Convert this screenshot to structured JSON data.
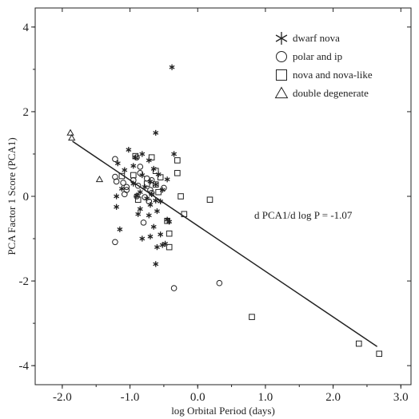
{
  "chart_data": {
    "type": "scatter",
    "title": "",
    "xlabel": "log Orbital Period (days)",
    "ylabel": "PCA Factor 1 Score (PCA1)",
    "xlim": [
      -2.4,
      3.15
    ],
    "ylim": [
      -4.45,
      4.45
    ],
    "x_ticks": [
      -2.0,
      -1.0,
      0.0,
      1.0,
      2.0,
      3.0
    ],
    "x_tick_labels": [
      "-2.0",
      "-1.0",
      "0.0",
      "1.0",
      "2.0",
      "3.0"
    ],
    "y_ticks": [
      4,
      2,
      0,
      -2,
      -4
    ],
    "y_tick_labels": [
      "4",
      "2",
      "0",
      "-2",
      "-4"
    ],
    "grid": false,
    "legend_position": "top-right",
    "annotation": "d PCA1/d log P = -1.07",
    "fit_line": {
      "x": [
        -1.85,
        2.65
      ],
      "y": [
        1.3,
        -3.55
      ]
    },
    "series": [
      {
        "name": "dwarf nova",
        "marker": "star",
        "points": [
          [
            -0.38,
            3.05
          ],
          [
            -0.62,
            1.5
          ],
          [
            -0.35,
            1.0
          ],
          [
            -1.02,
            1.1
          ],
          [
            -0.82,
            1.0
          ],
          [
            -0.92,
            0.92
          ],
          [
            -0.72,
            0.85
          ],
          [
            -1.18,
            0.78
          ],
          [
            -0.95,
            0.72
          ],
          [
            -0.65,
            0.65
          ],
          [
            -1.08,
            0.62
          ],
          [
            -0.58,
            0.52
          ],
          [
            -0.82,
            0.5
          ],
          [
            -0.45,
            0.4
          ],
          [
            -0.7,
            0.35
          ],
          [
            -0.95,
            0.3
          ],
          [
            -0.62,
            0.28
          ],
          [
            -0.78,
            0.22
          ],
          [
            -1.12,
            0.18
          ],
          [
            -0.52,
            0.15
          ],
          [
            -0.85,
            0.1
          ],
          [
            -0.68,
            0.05
          ],
          [
            -1.2,
            0.0
          ],
          [
            -0.9,
            0.02
          ],
          [
            -0.75,
            -0.05
          ],
          [
            -0.62,
            -0.1
          ],
          [
            -1.2,
            -0.25
          ],
          [
            -0.55,
            -0.12
          ],
          [
            -0.7,
            -0.2
          ],
          [
            -0.85,
            -0.3
          ],
          [
            -0.6,
            -0.35
          ],
          [
            -0.72,
            -0.45
          ],
          [
            -0.88,
            -0.42
          ],
          [
            -0.45,
            -0.55
          ],
          [
            -0.65,
            -0.72
          ],
          [
            -0.42,
            -0.6
          ],
          [
            -0.55,
            -0.9
          ],
          [
            -0.7,
            -0.95
          ],
          [
            -0.82,
            -1.0
          ],
          [
            -0.48,
            -1.12
          ],
          [
            -0.6,
            -1.2
          ],
          [
            -0.52,
            -1.15
          ],
          [
            -0.62,
            -1.6
          ],
          [
            -1.15,
            -0.78
          ]
        ]
      },
      {
        "name": "polar and ip",
        "marker": "circle",
        "points": [
          [
            -1.22,
            0.88
          ],
          [
            -1.22,
            0.46
          ],
          [
            -1.2,
            0.35
          ],
          [
            -1.1,
            0.32
          ],
          [
            -1.05,
            0.15
          ],
          [
            -0.95,
            0.38
          ],
          [
            -0.85,
            0.7
          ],
          [
            -0.85,
            0.55
          ],
          [
            -0.75,
            0.42
          ],
          [
            -0.68,
            0.38
          ],
          [
            -0.88,
            0.25
          ],
          [
            -0.7,
            0.15
          ],
          [
            -0.68,
            0.08
          ],
          [
            -0.9,
            0.0
          ],
          [
            -1.08,
            0.05
          ],
          [
            -1.05,
            0.22
          ],
          [
            -0.78,
            -0.02
          ],
          [
            -0.5,
            0.2
          ],
          [
            -0.72,
            -0.12
          ],
          [
            -0.8,
            -0.62
          ],
          [
            -1.22,
            -1.08
          ],
          [
            -0.35,
            -2.17
          ],
          [
            0.32,
            -2.05
          ],
          [
            -0.9,
            0.92
          ]
        ]
      },
      {
        "name": "nova and nova-like",
        "marker": "square",
        "points": [
          [
            -0.68,
            0.92
          ],
          [
            -0.92,
            0.95
          ],
          [
            -0.62,
            0.6
          ],
          [
            -0.55,
            0.45
          ],
          [
            -0.62,
            0.28
          ],
          [
            -0.58,
            0.1
          ],
          [
            -0.3,
            0.85
          ],
          [
            -0.3,
            0.55
          ],
          [
            -0.25,
            0.0
          ],
          [
            -0.2,
            -0.42
          ],
          [
            -0.45,
            -0.58
          ],
          [
            -0.42,
            -0.88
          ],
          [
            -0.42,
            -1.2
          ],
          [
            0.18,
            -0.08
          ],
          [
            -0.95,
            0.5
          ],
          [
            -1.12,
            0.48
          ],
          [
            -0.75,
            0.3
          ],
          [
            -0.88,
            -0.08
          ],
          [
            0.8,
            -2.85
          ],
          [
            2.38,
            -3.48
          ],
          [
            2.68,
            -3.72
          ]
        ]
      },
      {
        "name": "double degenerate",
        "marker": "triangle",
        "points": [
          [
            -1.88,
            1.5
          ],
          [
            -1.86,
            1.38
          ],
          [
            -1.45,
            0.4
          ]
        ]
      }
    ]
  }
}
